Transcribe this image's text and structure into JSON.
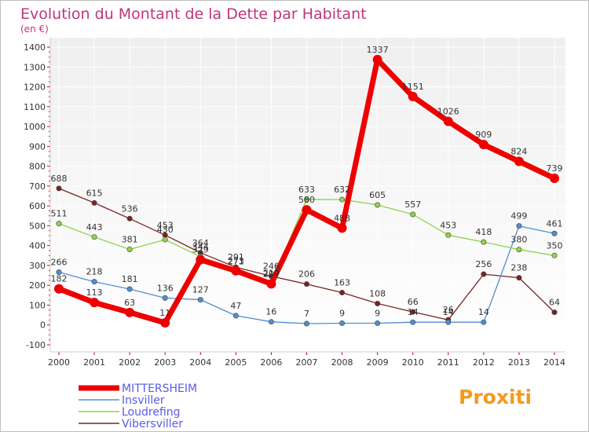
{
  "header": {
    "title": "Evolution du Montant de la Dette par Habitant",
    "subtitle": "(en €)"
  },
  "logo": {
    "text": "Proxiti"
  },
  "colors": {
    "title": "#c0357a",
    "legend_text": "#5a5ae6",
    "plot_bg_top": "#f2f2f2",
    "plot_bg_bottom": "#ffffff",
    "grid": "#ffffff",
    "axis_tick": "#cc0000"
  },
  "chart_data": {
    "type": "line",
    "title": "Evolution du Montant de la Dette par Habitant",
    "subtitle": "(en €)",
    "xlabel": "",
    "ylabel": "",
    "ylim": [
      -100,
      1400
    ],
    "yticks": [
      -100,
      0,
      100,
      200,
      300,
      400,
      500,
      600,
      700,
      800,
      900,
      1000,
      1100,
      1200,
      1300,
      1400
    ],
    "grid": true,
    "legend_position": "bottom-left",
    "x": [
      2000,
      2001,
      2002,
      2003,
      2004,
      2005,
      2006,
      2007,
      2008,
      2009,
      2010,
      2011,
      2012,
      2013,
      2014
    ],
    "series": [
      {
        "name": "Insviller",
        "color": "#4f8fcf",
        "values": [
          266,
          218,
          181,
          136,
          127,
          47,
          16,
          7,
          9,
          9,
          14,
          14,
          14,
          499,
          461
        ],
        "labels": [
          "266",
          "218",
          "181",
          "136",
          "127",
          "47",
          "16",
          "7",
          "9",
          "9",
          "14",
          "14",
          "14",
          "499",
          "461"
        ]
      },
      {
        "name": "Loudrefing",
        "color": "#8fd24a",
        "values": [
          511,
          443,
          381,
          430,
          344,
          271,
          210,
          633,
          632,
          605,
          557,
          453,
          418,
          380,
          350
        ],
        "labels": [
          "511",
          "443",
          "381",
          "430",
          "344",
          "271",
          "210",
          "633",
          "632",
          "605",
          "557",
          "453",
          "418",
          "380",
          "350"
        ]
      },
      {
        "name": "Vibersviller",
        "color": "#7a2222",
        "values": [
          688,
          615,
          536,
          453,
          364,
          291,
          246,
          206,
          163,
          108,
          66,
          26,
          256,
          238,
          64
        ],
        "labels": [
          "688",
          "615",
          "536",
          "453",
          "364",
          "291",
          "246",
          "206",
          "163",
          "108",
          "66",
          "26",
          "256",
          "238",
          "64"
        ]
      },
      {
        "name": "MITTERSHEIM",
        "color": "#ee0000",
        "values": [
          182,
          113,
          63,
          11,
          329,
          273,
          207,
          580,
          488,
          1337,
          1151,
          1026,
          909,
          824,
          739
        ],
        "labels": [
          "182",
          "113",
          "63",
          "11",
          "329",
          "273",
          "207",
          "580",
          "488",
          "1337",
          "1151",
          "1026",
          "909",
          "824",
          "739"
        ]
      }
    ],
    "legend_order": [
      "MITTERSHEIM",
      "Insviller",
      "Loudrefing",
      "Vibersviller"
    ]
  }
}
